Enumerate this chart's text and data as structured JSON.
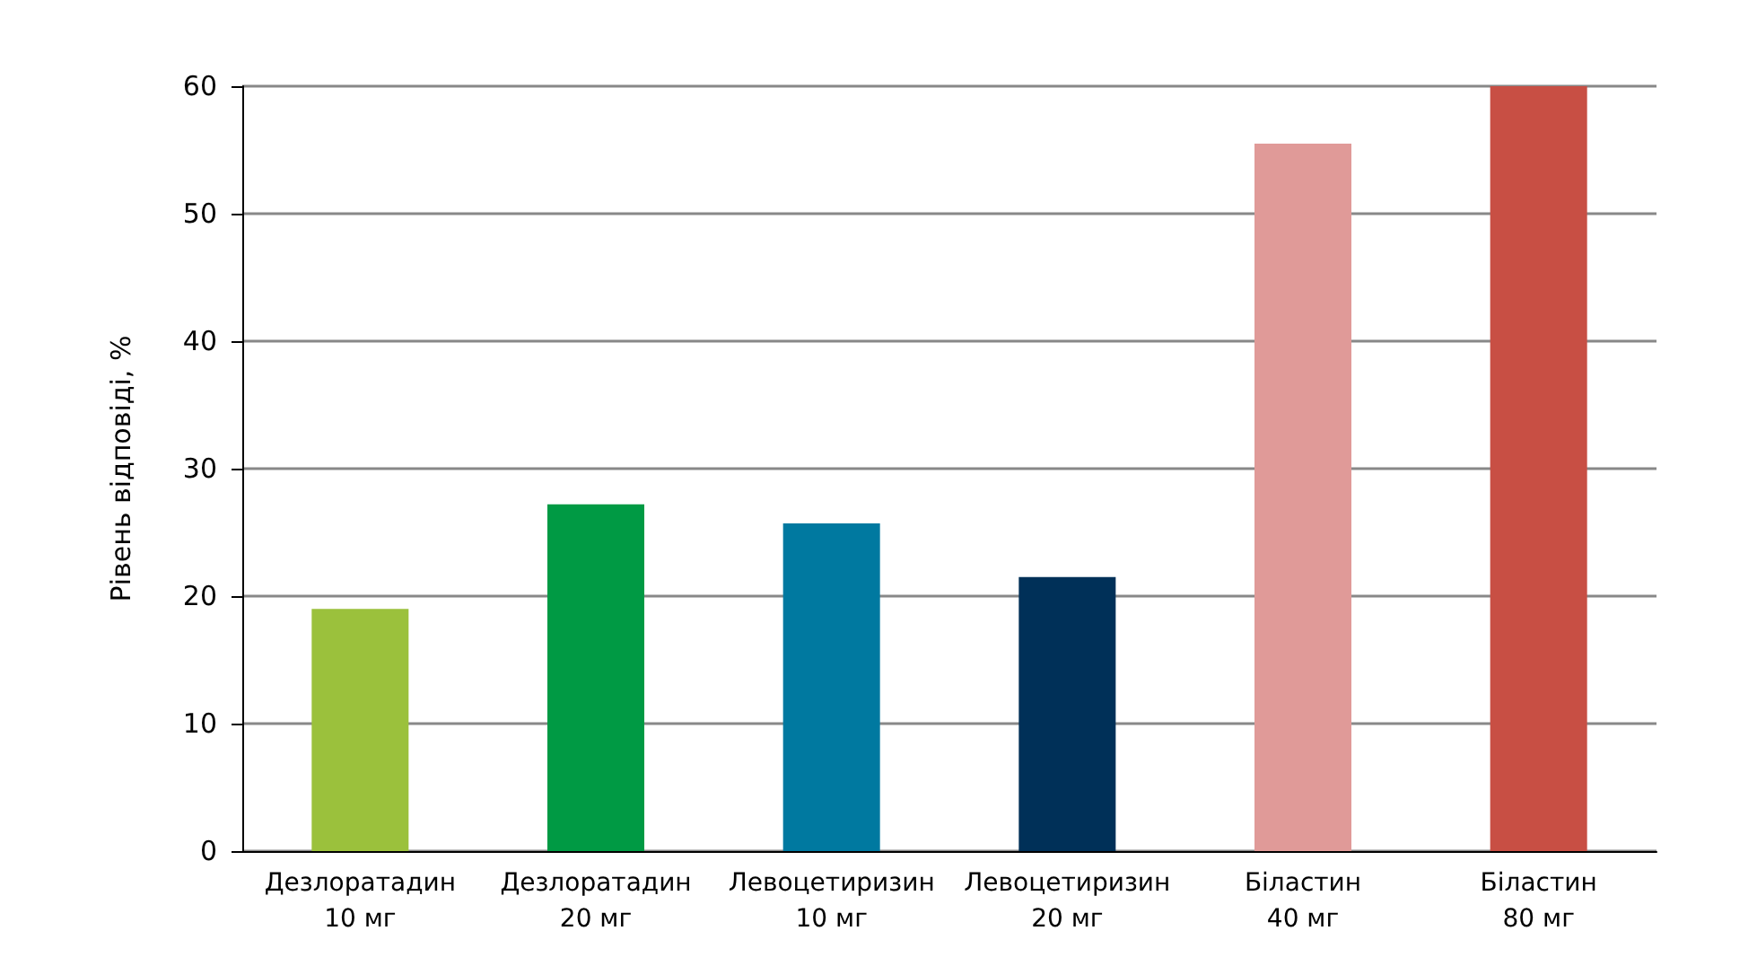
{
  "chart_data": {
    "type": "bar",
    "ylabel": "Рівень відповіді, %",
    "categories": [
      "Дезлоратадин\n10 мг",
      "Дезлоратадин\n20 мг",
      "Левоцетиризин\n10 мг",
      "Левоцетиризин\n20 мг",
      "Біластин\n40 мг",
      "Біластин\n80 мг"
    ],
    "values": [
      19,
      27.2,
      25.7,
      21.5,
      55.5,
      60
    ],
    "colors": [
      "#9bc13c",
      "#009a44",
      "#0079a0",
      "#003058",
      "#e09a98",
      "#c84f44"
    ],
    "ylim": [
      0,
      60
    ],
    "yticks": [
      0,
      10,
      20,
      30,
      40,
      50,
      60
    ],
    "grid": "y"
  }
}
